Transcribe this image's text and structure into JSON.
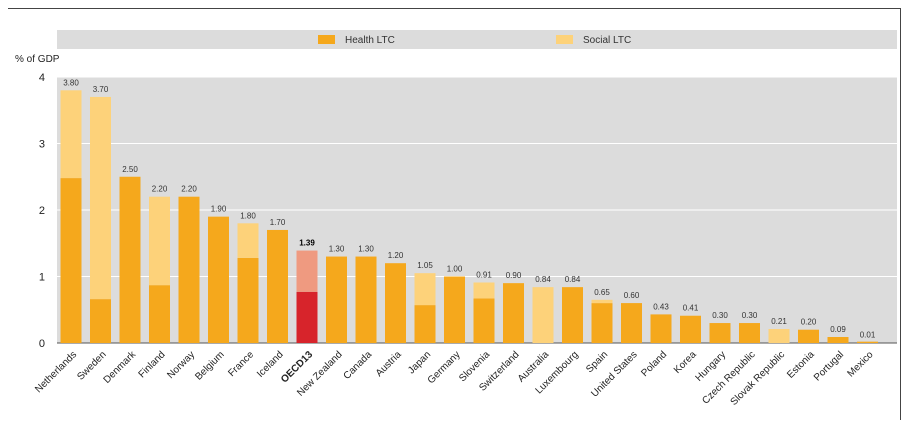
{
  "chart_data": {
    "type": "bar",
    "stacked": true,
    "ylabel": "% of GDP",
    "ylim": [
      0,
      4
    ],
    "yticks": [
      0,
      1,
      2,
      3,
      4
    ],
    "legend_position": "top",
    "categories": [
      "Netherlands",
      "Sweden",
      "Denmark",
      "Finland",
      "Norway",
      "Belgium",
      "France",
      "Iceland",
      "OECD13",
      "New Zealand",
      "Canada",
      "Austria",
      "Japan",
      "Germany",
      "Slovenia",
      "Switzerland",
      "Australia",
      "Luxembourg",
      "Spain",
      "United States",
      "Poland",
      "Korea",
      "Hungary",
      "Czech Republic",
      "Slovak Republic",
      "Estonia",
      "Portugal",
      "Mexico"
    ],
    "highlight": "OECD13",
    "series": [
      {
        "name": "Health LTC",
        "color": "#f5a81c",
        "highlight_color": "#d7242b",
        "values": [
          2.48,
          0.66,
          2.5,
          0.87,
          2.2,
          1.9,
          1.28,
          1.7,
          0.77,
          1.3,
          1.3,
          1.2,
          0.57,
          1.0,
          0.67,
          0.9,
          0.0,
          0.84,
          0.6,
          0.6,
          0.43,
          0.41,
          0.3,
          0.3,
          0.0,
          0.2,
          0.09,
          0.01
        ]
      },
      {
        "name": "Social LTC",
        "color": "#fdd27a",
        "highlight_color": "#ef9a80",
        "values": [
          1.32,
          3.04,
          0.0,
          1.33,
          0.0,
          0.0,
          0.52,
          0.0,
          0.62,
          0.0,
          0.0,
          0.0,
          0.48,
          0.0,
          0.24,
          0.0,
          0.84,
          0.0,
          0.05,
          0.0,
          0.0,
          0.0,
          0.0,
          0.0,
          0.21,
          0.0,
          0.0,
          0.0
        ]
      }
    ],
    "totals": [
      "3.80",
      "3.70",
      "2.50",
      "2.20",
      "2.20",
      "1.90",
      "1.80",
      "1.70",
      "1.39",
      "1.30",
      "1.30",
      "1.20",
      "1.05",
      "1.00",
      "0.91",
      "0.90",
      "0.84",
      "0.84",
      "0.65",
      "0.60",
      "0.43",
      "0.41",
      "0.30",
      "0.30",
      "0.21",
      "0.20",
      "0.09",
      "0.01"
    ],
    "grid": "horizontal",
    "background_color": "#dcdcdc"
  }
}
